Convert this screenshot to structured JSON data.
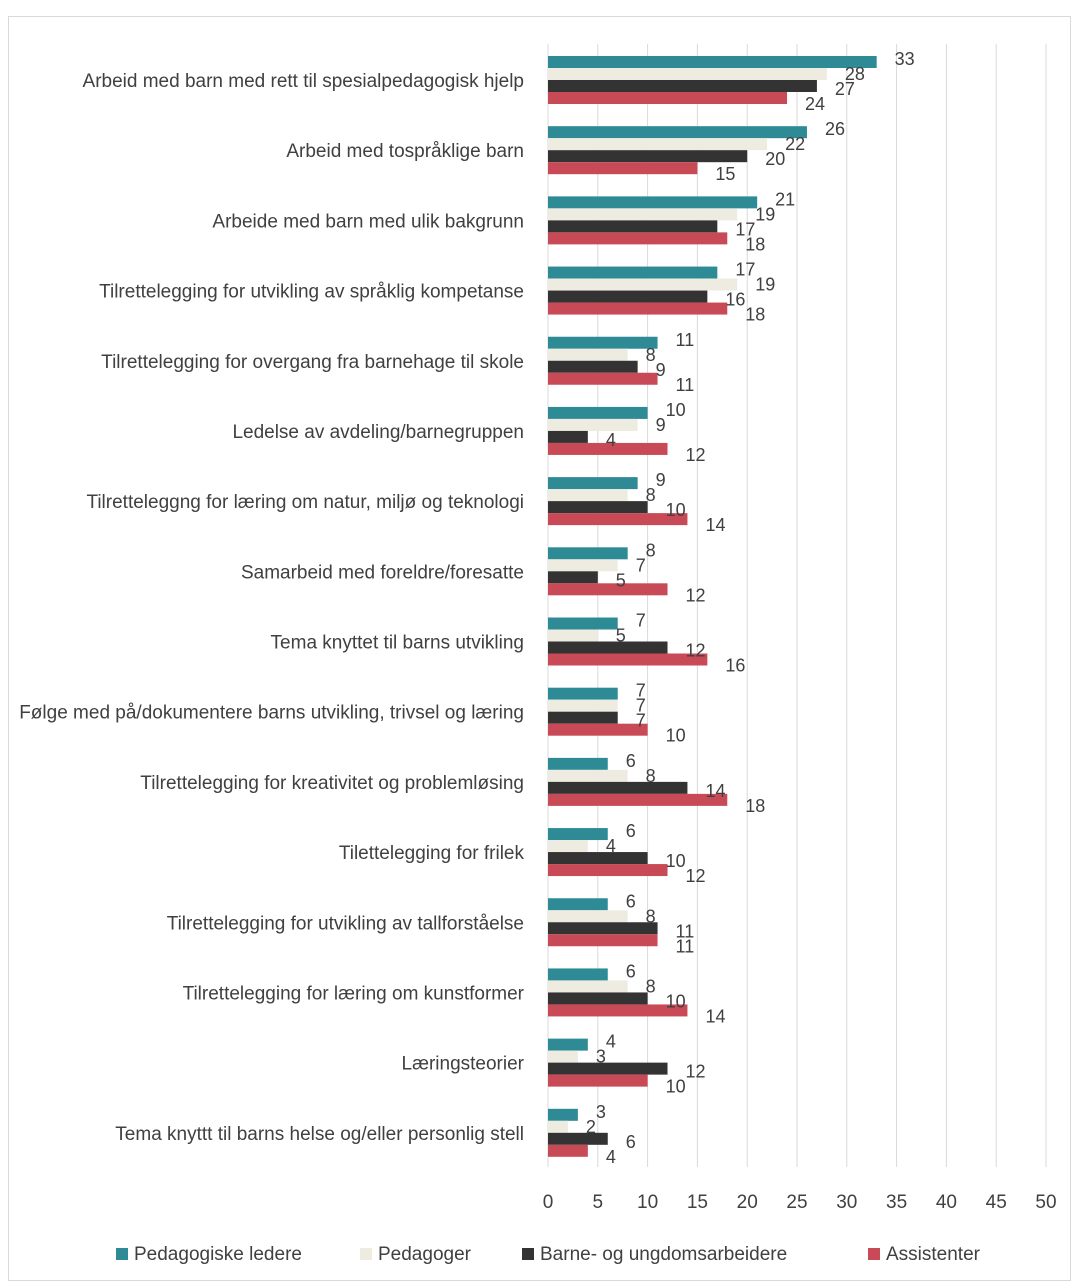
{
  "chart_data": {
    "type": "bar",
    "orientation": "horizontal",
    "title": "",
    "xlabel": "",
    "ylabel": "",
    "xlim": [
      0,
      50
    ],
    "x_ticks": [
      0,
      5,
      10,
      15,
      20,
      25,
      30,
      35,
      40,
      45,
      50
    ],
    "grid": "vertical",
    "legend_position": "bottom",
    "categories": [
      "Arbeid med barn med rett til spesialpedagogisk hjelp",
      "Arbeid med tospråklige barn",
      "Arbeide med barn med ulik bakgrunn",
      "Tilrettelegging for utvikling av språklig kompetanse",
      "Tilrettelegging for overgang fra barnehage til skole",
      "Ledelse av avdeling/barnegruppen",
      "Tilretteleggng for læring om natur, miljø og teknologi",
      "Samarbeid med foreldre/foresatte",
      "Tema knyttet til barns utvikling",
      "Følge med på/dokumentere barns utvikling, trivsel og læring",
      "Tilrettelegging for kreativitet og problemløsing",
      "Tilettelegging for frilek",
      "Tilrettelegging for utvikling av tallforståelse",
      "Tilrettelegging for læring om kunstformer",
      "Læringsteorier",
      "Tema knyttt til barns helse og/eller personlig stell"
    ],
    "series": [
      {
        "name": "Pedagogiske ledere",
        "color": "#2e8b96",
        "values": [
          33,
          26,
          21,
          17,
          11,
          10,
          9,
          8,
          7,
          7,
          6,
          6,
          6,
          6,
          4,
          3
        ]
      },
      {
        "name": "Pedagoger",
        "color": "#eeece1",
        "values": [
          28,
          22,
          19,
          19,
          8,
          9,
          8,
          7,
          5,
          7,
          8,
          4,
          8,
          8,
          3,
          2
        ]
      },
      {
        "name": "Barne- og ungdomsarbeidere",
        "color": "#333333",
        "values": [
          27,
          20,
          17,
          16,
          9,
          4,
          10,
          5,
          12,
          7,
          14,
          10,
          11,
          10,
          12,
          6
        ]
      },
      {
        "name": "Assistenter",
        "color": "#c84a57",
        "values": [
          24,
          15,
          18,
          18,
          11,
          12,
          14,
          12,
          16,
          10,
          18,
          12,
          11,
          14,
          10,
          4
        ]
      }
    ]
  }
}
